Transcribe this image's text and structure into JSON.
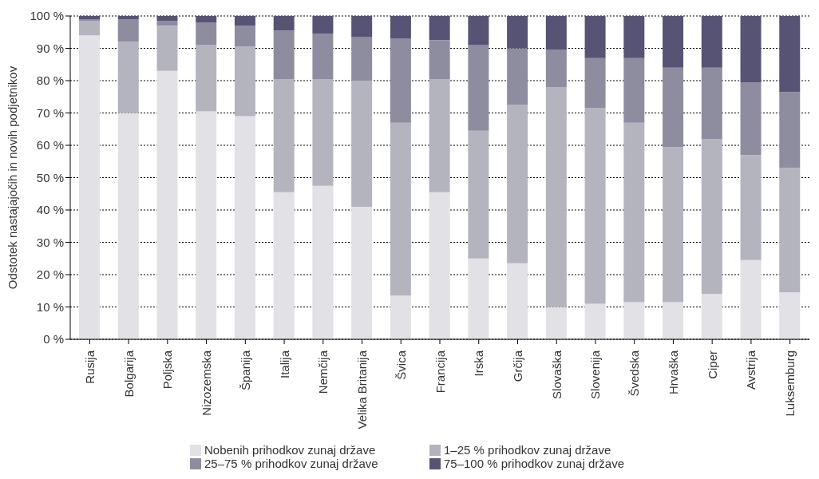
{
  "chart_data": {
    "type": "bar",
    "stacked": true,
    "ylabel": "Odstotek nastajajočih in novih podjetnikov",
    "categories": [
      "Rusija",
      "Bolgarija",
      "Poljska",
      "Nizozemska",
      "Španija",
      "Italija",
      "Nemčija",
      "Velika Britanija",
      "Švica",
      "Francija",
      "Irska",
      "Grčija",
      "Slovaška",
      "Slovenija",
      "Švedska",
      "Hrvaška",
      "Ciper",
      "Avstrija",
      "Luksemburg"
    ],
    "series": [
      {
        "name": "Nobenih prihodkov zunaj države",
        "color": "#e1e1e6",
        "values": [
          94,
          70,
          83,
          70.5,
          69,
          45.5,
          47.5,
          41,
          13.5,
          45.5,
          25,
          23.5,
          10,
          11,
          11.5,
          11.5,
          14,
          24.5,
          14.5
        ]
      },
      {
        "name": "1–25 % prihodkov zunaj države",
        "color": "#b4b4bf",
        "values": [
          4.5,
          22,
          14,
          20.5,
          21.5,
          35,
          33,
          39,
          53.5,
          35,
          39.5,
          49,
          68,
          60.5,
          55.5,
          48,
          48,
          32.5,
          38.5
        ]
      },
      {
        "name": "25–75 % prihodkov zunaj države",
        "color": "#8e8c9f",
        "values": [
          0.5,
          7,
          1.5,
          7,
          6.5,
          15,
          14,
          13.5,
          26,
          12,
          26.5,
          17.5,
          11.5,
          15.5,
          20,
          24.5,
          22,
          22.5,
          23.5
        ]
      },
      {
        "name": "75–100 % prihodkov zunaj države",
        "color": "#575374",
        "values": [
          1,
          1,
          1.5,
          2,
          3,
          4.5,
          5.5,
          6.5,
          7,
          7.5,
          9,
          10,
          10.5,
          13,
          13,
          16,
          16,
          20.5,
          23.5
        ]
      }
    ],
    "ylim": [
      0,
      100
    ],
    "yticks": [
      {
        "value": 0,
        "label": "0 %"
      },
      {
        "value": 10,
        "label": "10 %"
      },
      {
        "value": 20,
        "label": "20 %"
      },
      {
        "value": 30,
        "label": "30 %"
      },
      {
        "value": 40,
        "label": "40 %"
      },
      {
        "value": 50,
        "label": "50 %"
      },
      {
        "value": 60,
        "label": "60 %"
      },
      {
        "value": 70,
        "label": "70 %"
      },
      {
        "value": 80,
        "label": "80 %"
      },
      {
        "value": 90,
        "label": "90 %"
      },
      {
        "value": 100,
        "label": "100 %"
      }
    ],
    "grid": "y",
    "legend": "bottom"
  }
}
